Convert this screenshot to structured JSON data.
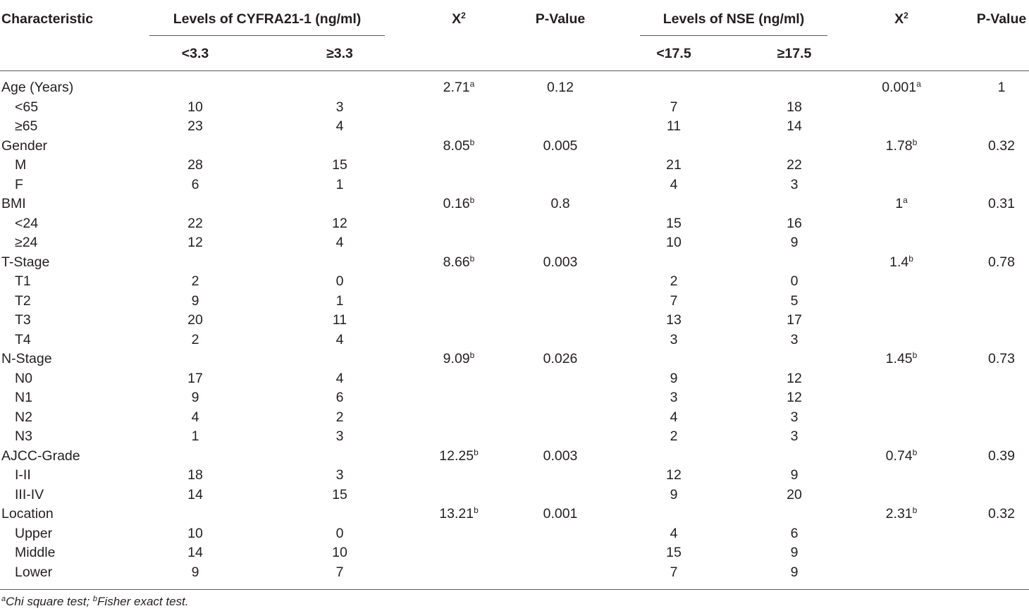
{
  "header": {
    "characteristic": "Characteristic",
    "cyfra_group": "Levels of CYFRA21-1 (ng/ml)",
    "cyfra_low": "<3.3",
    "cyfra_high": "≥3.3",
    "chi_base": "X",
    "chi_sup": "2",
    "pvalue": "P-Value",
    "nse_group": "Levels of NSE (ng/ml)",
    "nse_low": "<17.5",
    "nse_high": "≥17.5"
  },
  "rows": [
    {
      "label": "Age (Years)",
      "sub": false,
      "c_low": "",
      "c_high": "",
      "c_chi": "2.71",
      "c_chi_sup": "a",
      "c_p": "0.12",
      "n_low": "",
      "n_high": "",
      "n_chi": "0.001",
      "n_chi_sup": "a",
      "n_p": "1"
    },
    {
      "label": "<65",
      "sub": true,
      "c_low": "10",
      "c_high": "3",
      "c_chi": "",
      "c_chi_sup": "",
      "c_p": "",
      "n_low": "7",
      "n_high": "18",
      "n_chi": "",
      "n_chi_sup": "",
      "n_p": ""
    },
    {
      "label": "≥65",
      "sub": true,
      "c_low": "23",
      "c_high": "4",
      "c_chi": "",
      "c_chi_sup": "",
      "c_p": "",
      "n_low": "11",
      "n_high": "14",
      "n_chi": "",
      "n_chi_sup": "",
      "n_p": ""
    },
    {
      "label": "Gender",
      "sub": false,
      "c_low": "",
      "c_high": "",
      "c_chi": "8.05",
      "c_chi_sup": "b",
      "c_p": "0.005",
      "n_low": "",
      "n_high": "",
      "n_chi": "1.78",
      "n_chi_sup": "b",
      "n_p": "0.32"
    },
    {
      "label": "M",
      "sub": true,
      "c_low": "28",
      "c_high": "15",
      "c_chi": "",
      "c_chi_sup": "",
      "c_p": "",
      "n_low": "21",
      "n_high": "22",
      "n_chi": "",
      "n_chi_sup": "",
      "n_p": ""
    },
    {
      "label": "F",
      "sub": true,
      "c_low": "6",
      "c_high": "1",
      "c_chi": "",
      "c_chi_sup": "",
      "c_p": "",
      "n_low": "4",
      "n_high": "3",
      "n_chi": "",
      "n_chi_sup": "",
      "n_p": ""
    },
    {
      "label": "BMI",
      "sub": false,
      "c_low": "",
      "c_high": "",
      "c_chi": "0.16",
      "c_chi_sup": "b",
      "c_p": "0.8",
      "n_low": "",
      "n_high": "",
      "n_chi": "1",
      "n_chi_sup": "a",
      "n_p": "0.31"
    },
    {
      "label": "<24",
      "sub": true,
      "c_low": "22",
      "c_high": "12",
      "c_chi": "",
      "c_chi_sup": "",
      "c_p": "",
      "n_low": "15",
      "n_high": "16",
      "n_chi": "",
      "n_chi_sup": "",
      "n_p": ""
    },
    {
      "label": "≥24",
      "sub": true,
      "c_low": "12",
      "c_high": "4",
      "c_chi": "",
      "c_chi_sup": "",
      "c_p": "",
      "n_low": "10",
      "n_high": "9",
      "n_chi": "",
      "n_chi_sup": "",
      "n_p": ""
    },
    {
      "label": "T-Stage",
      "sub": false,
      "c_low": "",
      "c_high": "",
      "c_chi": "8.66",
      "c_chi_sup": "b",
      "c_p": "0.003",
      "n_low": "",
      "n_high": "",
      "n_chi": "1.4",
      "n_chi_sup": "b",
      "n_p": "0.78"
    },
    {
      "label": "T1",
      "sub": true,
      "c_low": "2",
      "c_high": "0",
      "c_chi": "",
      "c_chi_sup": "",
      "c_p": "",
      "n_low": "2",
      "n_high": "0",
      "n_chi": "",
      "n_chi_sup": "",
      "n_p": ""
    },
    {
      "label": "T2",
      "sub": true,
      "c_low": "9",
      "c_high": "1",
      "c_chi": "",
      "c_chi_sup": "",
      "c_p": "",
      "n_low": "7",
      "n_high": "5",
      "n_chi": "",
      "n_chi_sup": "",
      "n_p": ""
    },
    {
      "label": "T3",
      "sub": true,
      "c_low": "20",
      "c_high": "11",
      "c_chi": "",
      "c_chi_sup": "",
      "c_p": "",
      "n_low": "13",
      "n_high": "17",
      "n_chi": "",
      "n_chi_sup": "",
      "n_p": ""
    },
    {
      "label": "T4",
      "sub": true,
      "c_low": "2",
      "c_high": "4",
      "c_chi": "",
      "c_chi_sup": "",
      "c_p": "",
      "n_low": "3",
      "n_high": "3",
      "n_chi": "",
      "n_chi_sup": "",
      "n_p": ""
    },
    {
      "label": "N-Stage",
      "sub": false,
      "c_low": "",
      "c_high": "",
      "c_chi": "9.09",
      "c_chi_sup": "b",
      "c_p": "0.026",
      "n_low": "",
      "n_high": "",
      "n_chi": "1.45",
      "n_chi_sup": "b",
      "n_p": "0.73"
    },
    {
      "label": "N0",
      "sub": true,
      "c_low": "17",
      "c_high": "4",
      "c_chi": "",
      "c_chi_sup": "",
      "c_p": "",
      "n_low": "9",
      "n_high": "12",
      "n_chi": "",
      "n_chi_sup": "",
      "n_p": ""
    },
    {
      "label": "N1",
      "sub": true,
      "c_low": "9",
      "c_high": "6",
      "c_chi": "",
      "c_chi_sup": "",
      "c_p": "",
      "n_low": "3",
      "n_high": "12",
      "n_chi": "",
      "n_chi_sup": "",
      "n_p": ""
    },
    {
      "label": "N2",
      "sub": true,
      "c_low": "4",
      "c_high": "2",
      "c_chi": "",
      "c_chi_sup": "",
      "c_p": "",
      "n_low": "4",
      "n_high": "3",
      "n_chi": "",
      "n_chi_sup": "",
      "n_p": ""
    },
    {
      "label": "N3",
      "sub": true,
      "c_low": "1",
      "c_high": "3",
      "c_chi": "",
      "c_chi_sup": "",
      "c_p": "",
      "n_low": "2",
      "n_high": "3",
      "n_chi": "",
      "n_chi_sup": "",
      "n_p": ""
    },
    {
      "label": "AJCC-Grade",
      "sub": false,
      "c_low": "",
      "c_high": "",
      "c_chi": "12.25",
      "c_chi_sup": "b",
      "c_p": "0.003",
      "n_low": "",
      "n_high": "",
      "n_chi": "0.74",
      "n_chi_sup": "b",
      "n_p": "0.39"
    },
    {
      "label": "I-II",
      "sub": true,
      "c_low": "18",
      "c_high": "3",
      "c_chi": "",
      "c_chi_sup": "",
      "c_p": "",
      "n_low": "12",
      "n_high": "9",
      "n_chi": "",
      "n_chi_sup": "",
      "n_p": ""
    },
    {
      "label": "III-IV",
      "sub": true,
      "c_low": "14",
      "c_high": "15",
      "c_chi": "",
      "c_chi_sup": "",
      "c_p": "",
      "n_low": "9",
      "n_high": "20",
      "n_chi": "",
      "n_chi_sup": "",
      "n_p": ""
    },
    {
      "label": "Location",
      "sub": false,
      "c_low": "",
      "c_high": "",
      "c_chi": "13.21",
      "c_chi_sup": "b",
      "c_p": "0.001",
      "n_low": "",
      "n_high": "",
      "n_chi": "2.31",
      "n_chi_sup": "b",
      "n_p": "0.32"
    },
    {
      "label": "Upper",
      "sub": true,
      "c_low": "10",
      "c_high": "0",
      "c_chi": "",
      "c_chi_sup": "",
      "c_p": "",
      "n_low": "4",
      "n_high": "6",
      "n_chi": "",
      "n_chi_sup": "",
      "n_p": ""
    },
    {
      "label": "Middle",
      "sub": true,
      "c_low": "14",
      "c_high": "10",
      "c_chi": "",
      "c_chi_sup": "",
      "c_p": "",
      "n_low": "15",
      "n_high": "9",
      "n_chi": "",
      "n_chi_sup": "",
      "n_p": ""
    },
    {
      "label": "Lower",
      "sub": true,
      "c_low": "9",
      "c_high": "7",
      "c_chi": "",
      "c_chi_sup": "",
      "c_p": "",
      "n_low": "7",
      "n_high": "9",
      "n_chi": "",
      "n_chi_sup": "",
      "n_p": ""
    }
  ],
  "footnote": {
    "a_mark": "a",
    "a_text": "Chi square test; ",
    "b_mark": "b",
    "b_text": "Fisher exact test."
  }
}
